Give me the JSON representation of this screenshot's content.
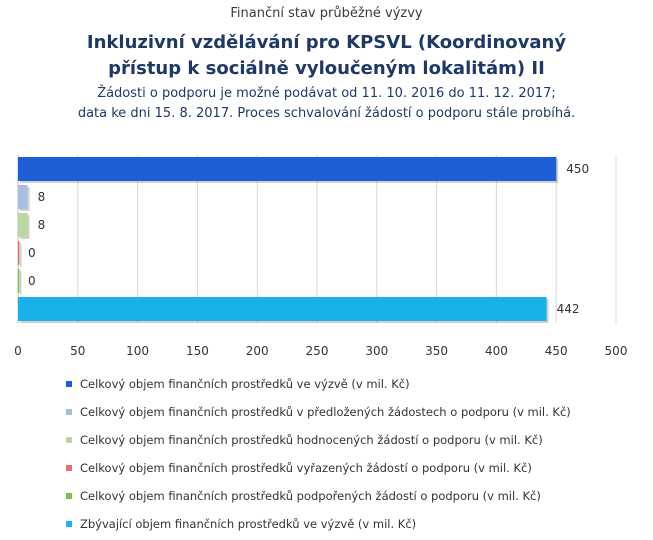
{
  "header": {
    "supertitle": "Finanční stav průběžné výzvy",
    "title_line1": "Inkluzivní vzdělávání pro KPSVL (Koordinovaný",
    "title_line2": "přístup k sociálně vyloučeným lokalitám) II",
    "subtitle_line1": "Žádosti o podporu je možné podávat od 11. 10. 2016 do 11. 12. 2017;",
    "subtitle_line2": "data ke dni 15. 8. 2017. Proces schvalování žádostí o podporu stále probíhá."
  },
  "chart_data": {
    "type": "bar",
    "orientation": "horizontal",
    "xlim": [
      0,
      500
    ],
    "x_ticks": [
      "0",
      "50",
      "100",
      "150",
      "200",
      "250",
      "300",
      "350",
      "400",
      "450",
      "500"
    ],
    "grid": true,
    "legend_position": "bottom",
    "series": [
      {
        "name": "Celkový objem finančních prostředků ve výzvě (v mil. Kč)",
        "value": 450,
        "label": "450",
        "color": "#1f5fd6"
      },
      {
        "name": "Celkový objem finančních prostředků v předložených žádostech o podporu (v mil. Kč)",
        "value": 8,
        "label": "8",
        "color": "#a9bde3"
      },
      {
        "name": "Celkový objem finančních prostředků hodnocených žádostí o podporu (v mil. Kč)",
        "value": 8,
        "label": "8",
        "color": "#b9d6a3"
      },
      {
        "name": "Celkový objem finančních prostředků vyřazených žádostí o podporu (v mil. Kč)",
        "value": 0,
        "label": "0",
        "color": "#e07070"
      },
      {
        "name": "Celkový objem finančních prostředků podpořených žádostí o podporu (v mil. Kč)",
        "value": 0,
        "label": "0",
        "color": "#7fbf4a"
      },
      {
        "name": "Zbývající objem finančních prostředků ve výzvě (v mil. Kč)",
        "value": 442,
        "label": "442",
        "color": "#1ab0e8"
      }
    ]
  }
}
